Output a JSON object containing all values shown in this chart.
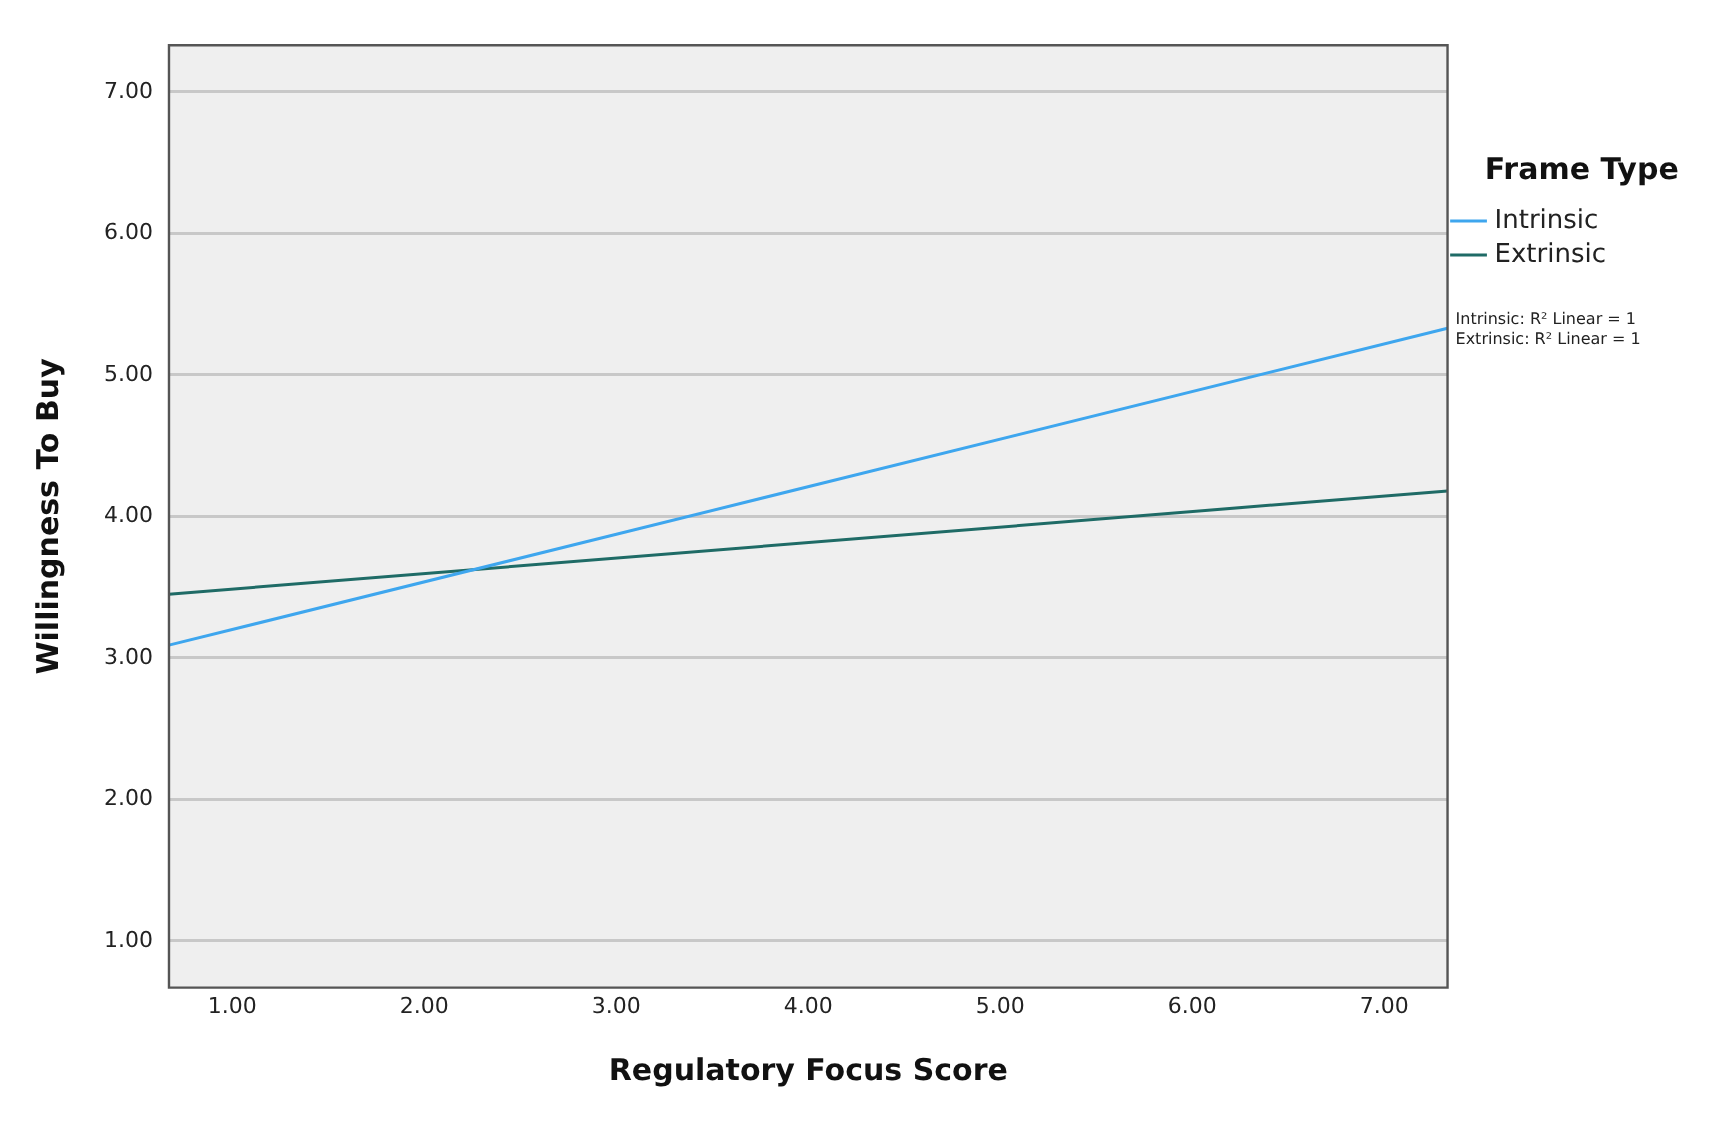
{
  "chart_data": {
    "type": "line",
    "xlabel": "Regulatory Focus Score",
    "ylabel": "Willingness To Buy",
    "legend_title": "Frame Type",
    "x": [
      0.67,
      7.33
    ],
    "series": [
      {
        "name": "Intrinsic",
        "color": "#3ea6ee",
        "values": [
          3.09,
          5.33
        ]
      },
      {
        "name": "Extrinsic",
        "color": "#1f6b66",
        "values": [
          3.45,
          4.18
        ]
      }
    ],
    "xlim": [
      0.67,
      7.33
    ],
    "ylim": [
      0.67,
      7.33
    ],
    "xticks": [
      {
        "value": 1,
        "label": "1.00"
      },
      {
        "value": 2,
        "label": "2.00"
      },
      {
        "value": 3,
        "label": "3.00"
      },
      {
        "value": 4,
        "label": "4.00"
      },
      {
        "value": 5,
        "label": "5.00"
      },
      {
        "value": 6,
        "label": "6.00"
      },
      {
        "value": 7,
        "label": "7.00"
      }
    ],
    "yticks": [
      {
        "value": 1,
        "label": "1.00"
      },
      {
        "value": 2,
        "label": "2.00"
      },
      {
        "value": 3,
        "label": "3.00"
      },
      {
        "value": 4,
        "label": "4.00"
      },
      {
        "value": 5,
        "label": "5.00"
      },
      {
        "value": 6,
        "label": "6.00"
      },
      {
        "value": 7,
        "label": "7.00"
      }
    ],
    "grid": "y",
    "legend": "right",
    "marker": "none",
    "line_style": "solid",
    "annotations": [
      "Intrinsic: R² Linear = 1",
      "Extrinsic: R² Linear = 1"
    ]
  }
}
